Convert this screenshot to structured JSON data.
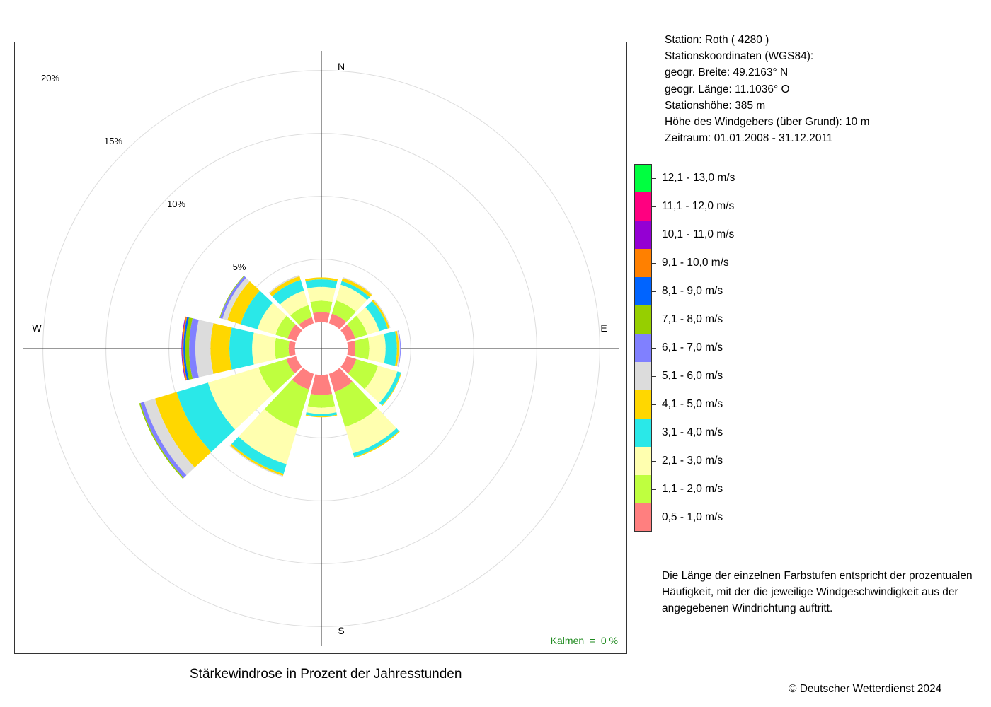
{
  "station_info": {
    "lines": [
      "Station:  Roth  ( 4280 )",
      "Stationskoordinaten (WGS84):",
      "geogr. Breite: 49.2163° N",
      "geogr. Länge: 11.1036° O",
      "Stationshöhe: 385 m",
      "Höhe des Windgebers (über Grund): 10 m",
      "Zeitraum: 01.01.2008 - 31.12.2011"
    ]
  },
  "note": "Die Länge der einzelnen Farbstufen entspricht der prozentualen Häufigkeit, mit der die jeweilige Windgeschwindigkeit aus der angegebenen Windrichtung auftritt.",
  "copyright": "© Deutscher Wetterdienst  2024",
  "calm_label": "Kalmen  =  0 %",
  "chart_data": {
    "type": "wind-rose",
    "title": "Stärkewindrose in Prozent der Jahresstunden",
    "direction_labels": {
      "N": "N",
      "E": "E",
      "S": "S",
      "W": "W"
    },
    "ring_values": [
      5,
      10,
      15,
      20
    ],
    "ring_labels": [
      "5%",
      "10%",
      "15%",
      "20%"
    ],
    "speed_classes": [
      {
        "label": "0,5 - 1,0 m/s",
        "color": "#FF7F7F"
      },
      {
        "label": "1,1 - 2,0 m/s",
        "color": "#BFFF3F"
      },
      {
        "label": "2,1 - 3,0 m/s",
        "color": "#FFFFAF"
      },
      {
        "label": "3,1 - 4,0 m/s",
        "color": "#2AE8E8"
      },
      {
        "label": "4,1 - 5,0 m/s",
        "color": "#FFD700"
      },
      {
        "label": "5,1 - 6,0 m/s",
        "color": "#DCDCDC"
      },
      {
        "label": "6,1 - 7,0 m/s",
        "color": "#8080FF"
      },
      {
        "label": "7,1 - 8,0 m/s",
        "color": "#96CF00"
      },
      {
        "label": "8,1 - 9,0 m/s",
        "color": "#0064FF"
      },
      {
        "label": "9,1 - 10,0 m/s",
        "color": "#FF8000"
      },
      {
        "label": "10,1 - 11,0 m/s",
        "color": "#9400D3"
      },
      {
        "label": "11,1 - 12,0 m/s",
        "color": "#FF0080"
      },
      {
        "label": "12,1 - 13,0 m/s",
        "color": "#00FF40"
      }
    ],
    "sectors": [
      {
        "direction": 0,
        "values": [
          0.8,
          0.9,
          1.1,
          0.6,
          0.15
        ]
      },
      {
        "direction": 30,
        "values": [
          0.8,
          1.1,
          1.3,
          0.3,
          0.25,
          0.08
        ]
      },
      {
        "direction": 60,
        "values": [
          0.7,
          1.0,
          1.0,
          0.7,
          0.15,
          0.08
        ]
      },
      {
        "direction": 90,
        "values": [
          0.6,
          1.1,
          1.3,
          0.9,
          0.15,
          0.1,
          0.05
        ]
      },
      {
        "direction": 120,
        "values": [
          0.8,
          1.8,
          1.6,
          0.3,
          0.05
        ]
      },
      {
        "direction": 150,
        "values": [
          1.5,
          2.9,
          2.2,
          0.3,
          0.08
        ]
      },
      {
        "direction": 180,
        "values": [
          1.6,
          1.0,
          0.5,
          0.2,
          0.06
        ]
      },
      {
        "direction": 210,
        "values": [
          1.3,
          3.2,
          3.0,
          0.8,
          0.15,
          0.08
        ]
      },
      {
        "direction": 240,
        "values": [
          0.8,
          2.3,
          4.2,
          2.6,
          1.8,
          0.9,
          0.3,
          0.1
        ]
      },
      {
        "direction": 270,
        "values": [
          0.5,
          1.1,
          1.8,
          1.8,
          1.5,
          1.2,
          0.5,
          0.3,
          0.15,
          0.1,
          0.05
        ]
      },
      {
        "direction": 300,
        "values": [
          0.7,
          1.0,
          1.5,
          1.4,
          1.1,
          0.4,
          0.2,
          0.05
        ]
      },
      {
        "direction": 330,
        "values": [
          0.5,
          1.0,
          1.2,
          0.9,
          0.3,
          0.1
        ]
      }
    ],
    "sector_width_deg": 26.5,
    "hub_radius": 1.0,
    "grid": true
  }
}
